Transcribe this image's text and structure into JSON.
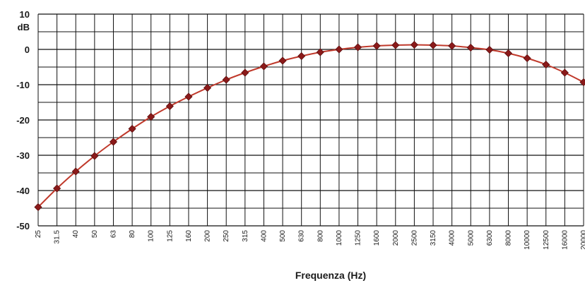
{
  "chart_data": {
    "type": "line",
    "title": "",
    "xlabel": "Frequenza (Hz)",
    "ylabel": "",
    "yunit": "dB",
    "ylim": [
      -50,
      10
    ],
    "yticks": [
      10,
      0,
      -10,
      -20,
      -30,
      -40,
      -50
    ],
    "grid": true,
    "categories": [
      "25",
      "31.5",
      "40",
      "50",
      "63",
      "80",
      "100",
      "125",
      "160",
      "200",
      "250",
      "315",
      "400",
      "500",
      "630",
      "800",
      "1000",
      "1250",
      "1600",
      "2000",
      "2500",
      "3150",
      "4000",
      "5000",
      "6300",
      "8000",
      "10000",
      "12500",
      "16000",
      "20000"
    ],
    "series": [
      {
        "values": [
          -44.7,
          -39.4,
          -34.6,
          -30.2,
          -26.2,
          -22.5,
          -19.1,
          -16.1,
          -13.4,
          -10.9,
          -8.6,
          -6.6,
          -4.8,
          -3.2,
          -1.9,
          -0.8,
          0.0,
          0.6,
          1.0,
          1.2,
          1.3,
          1.2,
          1.0,
          0.5,
          -0.1,
          -1.1,
          -2.5,
          -4.3,
          -6.6,
          -9.3
        ],
        "color": "#c0392b"
      }
    ]
  }
}
